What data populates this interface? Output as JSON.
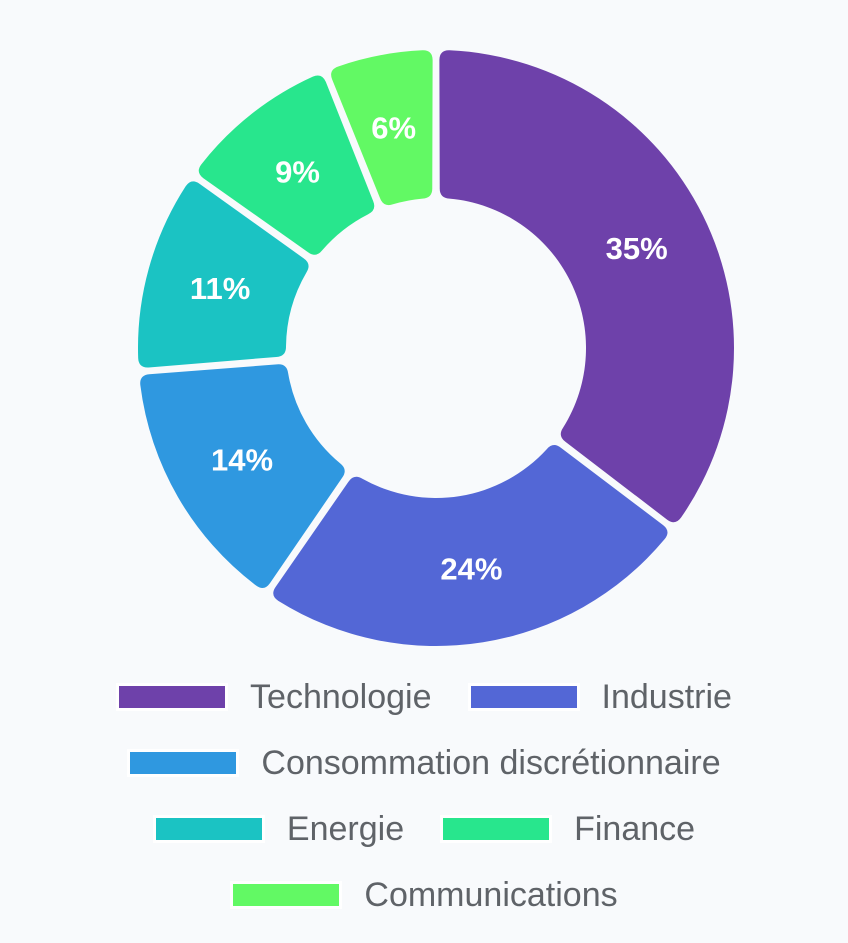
{
  "chart_data": {
    "type": "pie",
    "title": "",
    "categories": [
      "Technologie",
      "Industrie",
      "Consommation discrétionnaire",
      "Energie",
      "Finance",
      "Communications"
    ],
    "values": [
      35,
      24,
      14,
      11,
      9,
      6
    ],
    "labels": [
      "35%",
      "24%",
      "14%",
      "11%",
      "9%",
      "6%"
    ],
    "colors": [
      "#6e41aa",
      "#5367d6",
      "#2f98e0",
      "#1bc3c3",
      "#28e68d",
      "#62f964"
    ],
    "legend_position": "bottom"
  },
  "legend": {
    "rows": [
      [
        0,
        1
      ],
      [
        2
      ],
      [
        3,
        4
      ],
      [
        5
      ]
    ]
  }
}
